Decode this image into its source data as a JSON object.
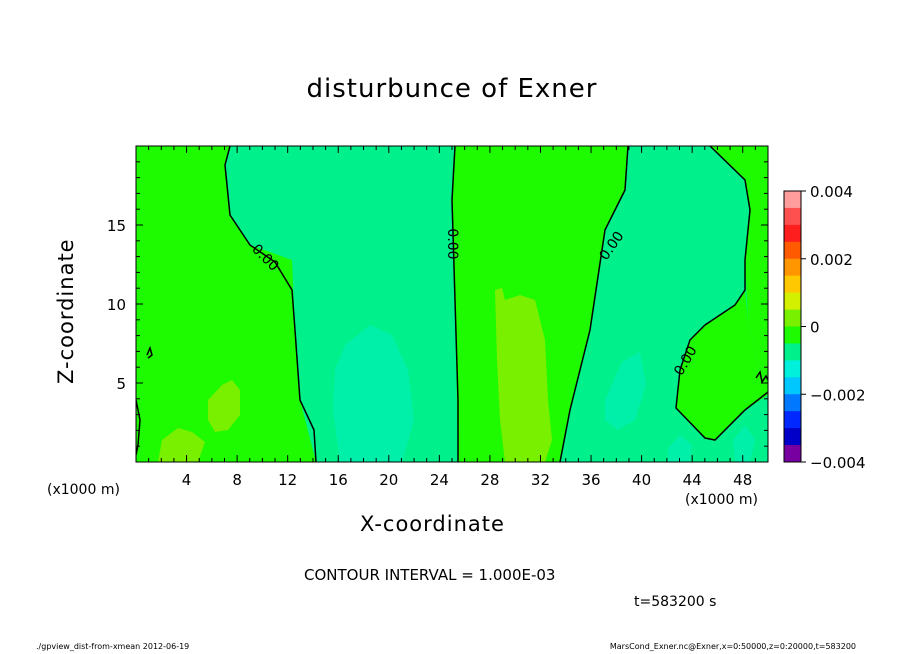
{
  "chart_data": {
    "type": "heatmap",
    "title": "disturbunce of Exner",
    "xlabel": "X-coordinate",
    "ylabel": "Z-coordinate",
    "x_units": "(x1000 m)",
    "xlim": [
      0,
      50
    ],
    "ylim": [
      0,
      20
    ],
    "x_ticks": [
      "4",
      "8",
      "12",
      "16",
      "20",
      "24",
      "28",
      "32",
      "36",
      "40",
      "44",
      "48"
    ],
    "y_ticks": [
      "5",
      "10",
      "15"
    ],
    "colorbar": {
      "ticks": [
        "0.004",
        "0.002",
        "0",
        "−0.002",
        "−0.004"
      ],
      "range": [
        -0.004,
        0.004
      ],
      "levels": [
        {
          "upper": 0.004,
          "color": "#ff9c9c"
        },
        {
          "upper": 0.0035,
          "color": "#ff5050"
        },
        {
          "upper": 0.003,
          "color": "#ff1e1e"
        },
        {
          "upper": 0.0025,
          "color": "#ff5a00"
        },
        {
          "upper": 0.002,
          "color": "#ff9600"
        },
        {
          "upper": 0.0015,
          "color": "#ffc800"
        },
        {
          "upper": 0.001,
          "color": "#d2f000"
        },
        {
          "upper": 0.0005,
          "color": "#78f000"
        },
        {
          "upper": 0.0,
          "color": "#1efa00"
        },
        {
          "upper": -0.0005,
          "color": "#00f08c"
        },
        {
          "upper": -0.001,
          "color": "#00f0dc"
        },
        {
          "upper": -0.0015,
          "color": "#00c8ff"
        },
        {
          "upper": -0.002,
          "color": "#0078ff"
        },
        {
          "upper": -0.0025,
          "color": "#0028ff"
        },
        {
          "upper": -0.003,
          "color": "#0000c8"
        },
        {
          "upper": -0.0035,
          "color": "#7800a0"
        }
      ]
    },
    "contour_label": "0.00",
    "contour_interval_text": "CONTOUR INTERVAL = 1.000E-03",
    "time_text": "t=583200 s",
    "footer_left": "./gpview_dist-from-xmean  2012-06-19",
    "footer_right": "MarsCond_Exner.nc@Exner,x=0:50000,z=0:20000,t=583200"
  }
}
